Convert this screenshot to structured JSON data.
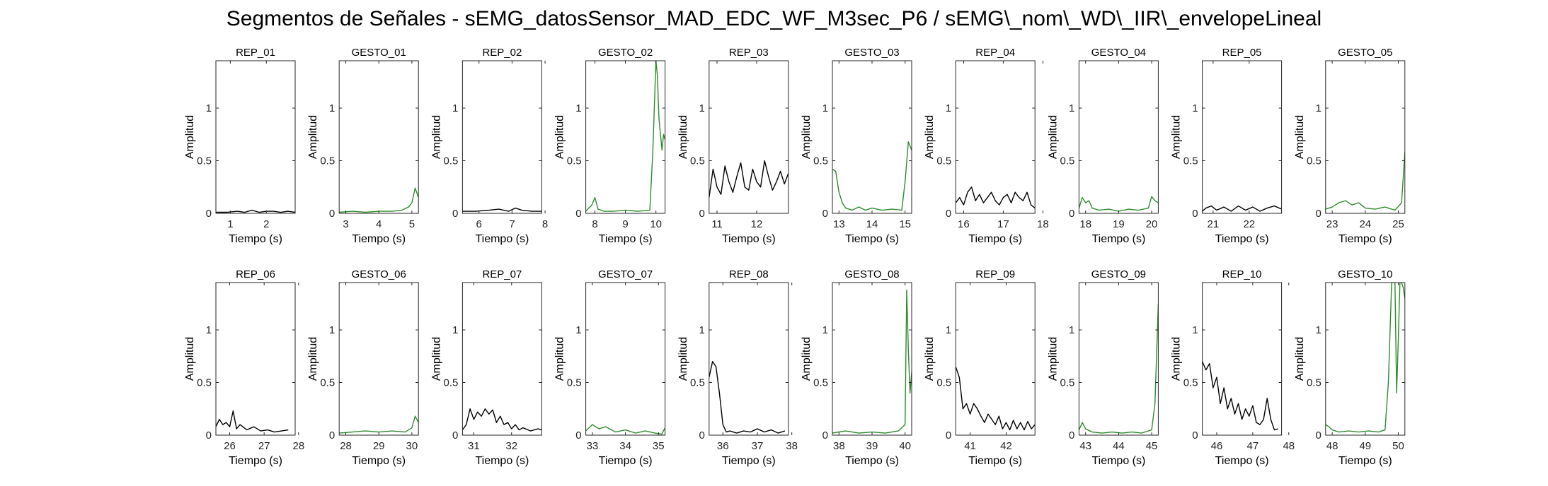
{
  "figure": {
    "title": "Segmentos de Señales - sEMG_datosSensor_MAD_EDC_WF_M3sec_P6 / sEMG\\_nom\\_WD\\_IIR\\_envelopeLineal"
  },
  "colors": {
    "rep": "#000000",
    "gesto": "#2e8b2e",
    "axes": "#262626"
  },
  "chart_data": [
    {
      "type": "line",
      "title": "REP_01",
      "xlabel": "Tiempo (s)",
      "ylabel": "Amplitud",
      "xlim": [
        0.6,
        2.8
      ],
      "ylim": [
        0,
        1.45
      ],
      "xticks": [
        1,
        2
      ],
      "yticks": [
        0,
        0.5,
        1
      ],
      "ytick_labels": [
        "0",
        "0.5",
        "1"
      ],
      "series_color": "#000000",
      "x": [
        0.6,
        0.9,
        1.2,
        1.4,
        1.6,
        1.8,
        2.0,
        2.2,
        2.4,
        2.6,
        2.8
      ],
      "y": [
        0.01,
        0.01,
        0.02,
        0.01,
        0.03,
        0.01,
        0.02,
        0.02,
        0.01,
        0.02,
        0.01
      ]
    },
    {
      "type": "line",
      "title": "GESTO_01",
      "xlabel": "Tiempo (s)",
      "ylabel": "Amplitud",
      "xlim": [
        2.8,
        5.2
      ],
      "ylim": [
        0,
        1.45
      ],
      "xticks": [
        3,
        4,
        5
      ],
      "yticks": [
        0,
        0.5,
        1
      ],
      "ytick_labels": [
        "0",
        "0.5",
        "1"
      ],
      "series_color": "#2e8b2e",
      "x": [
        2.8,
        3.2,
        3.6,
        4.0,
        4.4,
        4.7,
        4.9,
        5.0,
        5.1,
        5.2
      ],
      "y": [
        0.01,
        0.02,
        0.01,
        0.02,
        0.02,
        0.03,
        0.06,
        0.1,
        0.24,
        0.15
      ]
    },
    {
      "type": "line",
      "title": "REP_02",
      "xlabel": "Tiempo (s)",
      "ylabel": "Amplitud",
      "xlim": [
        5.5,
        7.9
      ],
      "ylim": [
        0,
        1.45
      ],
      "xticks": [
        6,
        7,
        8
      ],
      "yticks": [
        0,
        0.5,
        1
      ],
      "ytick_labels": [
        "0",
        "0.5",
        "1"
      ],
      "series_color": "#000000",
      "x": [
        5.5,
        5.9,
        6.3,
        6.6,
        6.9,
        7.1,
        7.3,
        7.6,
        7.9
      ],
      "y": [
        0.02,
        0.02,
        0.03,
        0.04,
        0.02,
        0.05,
        0.03,
        0.02,
        0.02
      ]
    },
    {
      "type": "line",
      "title": "GESTO_02",
      "xlabel": "Tiempo (s)",
      "ylabel": "Amplitud",
      "xlim": [
        7.7,
        10.3
      ],
      "ylim": [
        0,
        1.45
      ],
      "xticks": [
        8,
        9,
        10
      ],
      "yticks": [
        0,
        0.5,
        1
      ],
      "ytick_labels": [
        "0",
        "0.5",
        "1"
      ],
      "series_color": "#2e8b2e",
      "x": [
        7.7,
        7.9,
        8.0,
        8.1,
        8.3,
        8.6,
        9.0,
        9.4,
        9.8,
        9.9,
        10.0,
        10.05,
        10.1,
        10.2,
        10.25,
        10.3
      ],
      "y": [
        0.02,
        0.08,
        0.15,
        0.04,
        0.02,
        0.02,
        0.03,
        0.02,
        0.03,
        0.6,
        1.45,
        1.3,
        0.9,
        0.6,
        0.75,
        0.7
      ]
    },
    {
      "type": "line",
      "title": "REP_03",
      "xlabel": "Tiempo (s)",
      "ylabel": "Amplitud",
      "xlim": [
        10.8,
        12.8
      ],
      "ylim": [
        0,
        1.45
      ],
      "xticks": [
        11,
        12
      ],
      "yticks": [
        0,
        0.5,
        1
      ],
      "ytick_labels": [
        "0",
        "0.5",
        "1"
      ],
      "series_color": "#000000",
      "x": [
        10.8,
        10.9,
        11.0,
        11.1,
        11.2,
        11.3,
        11.4,
        11.5,
        11.6,
        11.7,
        11.8,
        11.9,
        12.0,
        12.1,
        12.2,
        12.3,
        12.4,
        12.5,
        12.6,
        12.7,
        12.8
      ],
      "y": [
        0.15,
        0.42,
        0.25,
        0.18,
        0.45,
        0.3,
        0.2,
        0.35,
        0.48,
        0.25,
        0.22,
        0.42,
        0.3,
        0.25,
        0.5,
        0.35,
        0.22,
        0.3,
        0.4,
        0.28,
        0.38
      ]
    },
    {
      "type": "line",
      "title": "GESTO_03",
      "xlabel": "Tiempo (s)",
      "ylabel": "Amplitud",
      "xlim": [
        12.8,
        15.2
      ],
      "ylim": [
        0,
        1.45
      ],
      "xticks": [
        13,
        14,
        15
      ],
      "yticks": [
        0,
        0.5,
        1
      ],
      "ytick_labels": [
        "0",
        "0.5",
        "1"
      ],
      "series_color": "#2e8b2e",
      "x": [
        12.8,
        12.9,
        13.0,
        13.1,
        13.2,
        13.4,
        13.6,
        13.8,
        14.0,
        14.3,
        14.6,
        14.9,
        15.0,
        15.1,
        15.2
      ],
      "y": [
        0.42,
        0.4,
        0.2,
        0.1,
        0.05,
        0.03,
        0.06,
        0.03,
        0.05,
        0.03,
        0.04,
        0.03,
        0.3,
        0.68,
        0.6
      ]
    },
    {
      "type": "line",
      "title": "REP_04",
      "xlabel": "Tiempo (s)",
      "ylabel": "Amplitud",
      "xlim": [
        15.8,
        17.8
      ],
      "ylim": [
        0,
        1.45
      ],
      "xticks": [
        16,
        17,
        18
      ],
      "yticks": [
        0,
        0.5,
        1
      ],
      "ytick_labels": [
        "0",
        "0.5",
        "1"
      ],
      "series_color": "#000000",
      "x": [
        15.8,
        15.9,
        16.0,
        16.1,
        16.2,
        16.3,
        16.4,
        16.5,
        16.6,
        16.7,
        16.8,
        16.9,
        17.0,
        17.1,
        17.2,
        17.3,
        17.4,
        17.5,
        17.6,
        17.7,
        17.8
      ],
      "y": [
        0.1,
        0.15,
        0.08,
        0.2,
        0.25,
        0.12,
        0.18,
        0.1,
        0.15,
        0.2,
        0.12,
        0.08,
        0.15,
        0.18,
        0.1,
        0.2,
        0.15,
        0.12,
        0.2,
        0.08,
        0.05
      ]
    },
    {
      "type": "line",
      "title": "GESTO_04",
      "xlabel": "Tiempo (s)",
      "ylabel": "Amplitud",
      "xlim": [
        17.8,
        20.2
      ],
      "ylim": [
        0,
        1.45
      ],
      "xticks": [
        18,
        19,
        20
      ],
      "yticks": [
        0,
        0.5,
        1
      ],
      "ytick_labels": [
        "0",
        "0.5",
        "1"
      ],
      "series_color": "#2e8b2e",
      "x": [
        17.8,
        17.9,
        18.0,
        18.1,
        18.2,
        18.4,
        18.7,
        19.0,
        19.3,
        19.6,
        19.9,
        20.0,
        20.1,
        20.2
      ],
      "y": [
        0.05,
        0.15,
        0.1,
        0.12,
        0.05,
        0.03,
        0.04,
        0.02,
        0.04,
        0.03,
        0.05,
        0.16,
        0.12,
        0.1
      ]
    },
    {
      "type": "line",
      "title": "REP_05",
      "xlabel": "Tiempo (s)",
      "ylabel": "Amplitud",
      "xlim": [
        20.7,
        22.9
      ],
      "ylim": [
        0,
        1.45
      ],
      "xticks": [
        21,
        22
      ],
      "yticks": [
        0,
        0.5,
        1
      ],
      "ytick_labels": [
        "0",
        "0.5",
        "1"
      ],
      "series_color": "#000000",
      "x": [
        20.7,
        20.8,
        20.95,
        21.1,
        21.3,
        21.5,
        21.7,
        21.9,
        22.1,
        22.3,
        22.5,
        22.7,
        22.9
      ],
      "y": [
        0.02,
        0.05,
        0.07,
        0.03,
        0.06,
        0.02,
        0.07,
        0.03,
        0.06,
        0.02,
        0.05,
        0.07,
        0.04
      ]
    },
    {
      "type": "line",
      "title": "GESTO_05",
      "xlabel": "Tiempo (s)",
      "ylabel": "Amplitud",
      "xlim": [
        22.8,
        25.2
      ],
      "ylim": [
        0,
        1.45
      ],
      "xticks": [
        23,
        24,
        25
      ],
      "yticks": [
        0,
        0.5,
        1
      ],
      "ytick_labels": [
        "0",
        "0.5",
        "1"
      ],
      "series_color": "#2e8b2e",
      "x": [
        22.8,
        23.0,
        23.2,
        23.4,
        23.6,
        23.8,
        24.0,
        24.3,
        24.6,
        24.9,
        25.1,
        25.2
      ],
      "y": [
        0.04,
        0.06,
        0.1,
        0.12,
        0.08,
        0.1,
        0.05,
        0.04,
        0.06,
        0.03,
        0.1,
        0.58
      ]
    },
    {
      "type": "line",
      "title": "REP_06",
      "xlabel": "Tiempo (s)",
      "ylabel": "Amplitud",
      "xlim": [
        25.6,
        27.9
      ],
      "ylim": [
        0,
        1.45
      ],
      "xticks": [
        26,
        27,
        28
      ],
      "yticks": [
        0,
        0.5,
        1
      ],
      "ytick_labels": [
        "0",
        "0.5",
        "1"
      ],
      "series_color": "#000000",
      "x": [
        25.6,
        25.7,
        25.8,
        25.9,
        26.0,
        26.1,
        26.2,
        26.3,
        26.5,
        26.7,
        26.9,
        27.1,
        27.3,
        27.5,
        27.7
      ],
      "y": [
        0.08,
        0.15,
        0.1,
        0.12,
        0.08,
        0.23,
        0.06,
        0.1,
        0.05,
        0.08,
        0.04,
        0.05,
        0.03,
        0.04,
        0.05
      ]
    },
    {
      "type": "line",
      "title": "GESTO_06",
      "xlabel": "Tiempo (s)",
      "ylabel": "Amplitud",
      "xlim": [
        27.8,
        30.2
      ],
      "ylim": [
        0,
        1.45
      ],
      "xticks": [
        28,
        29,
        30
      ],
      "yticks": [
        0,
        0.5,
        1
      ],
      "ytick_labels": [
        "0",
        "0.5",
        "1"
      ],
      "series_color": "#2e8b2e",
      "x": [
        27.8,
        28.2,
        28.6,
        29.0,
        29.4,
        29.8,
        30.0,
        30.1,
        30.2
      ],
      "y": [
        0.02,
        0.03,
        0.04,
        0.03,
        0.04,
        0.03,
        0.07,
        0.18,
        0.12
      ]
    },
    {
      "type": "line",
      "title": "REP_07",
      "xlabel": "Tiempo (s)",
      "ylabel": "Amplitud",
      "xlim": [
        30.7,
        32.8
      ],
      "ylim": [
        0,
        1.45
      ],
      "xticks": [
        31,
        32
      ],
      "yticks": [
        0,
        0.5,
        1
      ],
      "ytick_labels": [
        "0",
        "0.5",
        "1"
      ],
      "series_color": "#000000",
      "x": [
        30.7,
        30.8,
        30.9,
        31.0,
        31.1,
        31.2,
        31.3,
        31.4,
        31.5,
        31.6,
        31.7,
        31.8,
        31.9,
        32.0,
        32.1,
        32.2,
        32.3,
        32.5,
        32.7,
        32.8
      ],
      "y": [
        0.05,
        0.1,
        0.25,
        0.15,
        0.22,
        0.18,
        0.25,
        0.2,
        0.24,
        0.12,
        0.18,
        0.1,
        0.12,
        0.06,
        0.1,
        0.05,
        0.07,
        0.04,
        0.06,
        0.05
      ]
    },
    {
      "type": "line",
      "title": "GESTO_07",
      "xlabel": "Tiempo (s)",
      "ylabel": "Amplitud",
      "xlim": [
        32.8,
        35.2
      ],
      "ylim": [
        0,
        1.45
      ],
      "xticks": [
        33,
        34,
        35
      ],
      "yticks": [
        0,
        0.5,
        1
      ],
      "ytick_labels": [
        "0",
        "0.5",
        "1"
      ],
      "series_color": "#2e8b2e",
      "x": [
        32.8,
        33.0,
        33.2,
        33.4,
        33.7,
        34.0,
        34.3,
        34.6,
        34.9,
        35.1,
        35.2
      ],
      "y": [
        0.04,
        0.1,
        0.06,
        0.08,
        0.03,
        0.05,
        0.02,
        0.04,
        0.02,
        0.01,
        0.07
      ]
    },
    {
      "type": "line",
      "title": "REP_08",
      "xlabel": "Tiempo (s)",
      "ylabel": "Amplitud",
      "xlim": [
        35.6,
        37.9
      ],
      "ylim": [
        0,
        1.45
      ],
      "xticks": [
        36,
        37,
        38
      ],
      "yticks": [
        0,
        0.5,
        1
      ],
      "ytick_labels": [
        "0",
        "0.5",
        "1"
      ],
      "series_color": "#000000",
      "x": [
        35.6,
        35.7,
        35.8,
        35.9,
        36.0,
        36.1,
        36.2,
        36.4,
        36.6,
        36.8,
        37.0,
        37.2,
        37.4,
        37.6,
        37.8
      ],
      "y": [
        0.55,
        0.7,
        0.65,
        0.4,
        0.1,
        0.03,
        0.04,
        0.02,
        0.04,
        0.03,
        0.06,
        0.03,
        0.05,
        0.02,
        0.04
      ]
    },
    {
      "type": "line",
      "title": "GESTO_08",
      "xlabel": "Tiempo (s)",
      "ylabel": "Amplitud",
      "xlim": [
        37.8,
        40.2
      ],
      "ylim": [
        0,
        1.45
      ],
      "xticks": [
        38,
        39,
        40
      ],
      "yticks": [
        0,
        0.5,
        1
      ],
      "ytick_labels": [
        "0",
        "0.5",
        "1"
      ],
      "series_color": "#2e8b2e",
      "x": [
        37.8,
        38.2,
        38.6,
        39.0,
        39.4,
        39.8,
        40.0,
        40.05,
        40.1,
        40.15,
        40.2
      ],
      "y": [
        0.02,
        0.04,
        0.02,
        0.03,
        0.02,
        0.04,
        0.1,
        1.38,
        0.8,
        0.4,
        0.6
      ]
    },
    {
      "type": "line",
      "title": "REP_09",
      "xlabel": "Tiempo (s)",
      "ylabel": "Amplitud",
      "xlim": [
        40.6,
        42.8
      ],
      "ylim": [
        0,
        1.45
      ],
      "xticks": [
        41,
        42
      ],
      "yticks": [
        0,
        0.5,
        1
      ],
      "ytick_labels": [
        "0",
        "0.5",
        "1"
      ],
      "series_color": "#000000",
      "x": [
        40.6,
        40.7,
        40.8,
        40.9,
        41.0,
        41.1,
        41.2,
        41.3,
        41.4,
        41.5,
        41.6,
        41.7,
        41.8,
        41.9,
        42.0,
        42.1,
        42.2,
        42.3,
        42.4,
        42.5,
        42.6,
        42.7,
        42.8
      ],
      "y": [
        0.65,
        0.55,
        0.25,
        0.3,
        0.2,
        0.3,
        0.25,
        0.18,
        0.12,
        0.2,
        0.15,
        0.1,
        0.18,
        0.06,
        0.12,
        0.05,
        0.14,
        0.06,
        0.12,
        0.05,
        0.13,
        0.06,
        0.1
      ]
    },
    {
      "type": "line",
      "title": "GESTO_09",
      "xlabel": "Tiempo (s)",
      "ylabel": "Amplitud",
      "xlim": [
        42.8,
        45.2
      ],
      "ylim": [
        0,
        1.45
      ],
      "xticks": [
        43,
        44,
        45
      ],
      "yticks": [
        0,
        0.5,
        1
      ],
      "ytick_labels": [
        "0",
        "0.5",
        "1"
      ],
      "series_color": "#2e8b2e",
      "x": [
        42.8,
        42.9,
        43.0,
        43.2,
        43.5,
        43.8,
        44.1,
        44.4,
        44.7,
        45.0,
        45.1,
        45.2
      ],
      "y": [
        0.05,
        0.12,
        0.06,
        0.03,
        0.02,
        0.03,
        0.02,
        0.03,
        0.02,
        0.05,
        0.3,
        1.25
      ]
    },
    {
      "type": "line",
      "title": "REP_10",
      "xlabel": "Tiempo (s)",
      "ylabel": "Amplitud",
      "xlim": [
        45.6,
        47.8
      ],
      "ylim": [
        0,
        1.45
      ],
      "xticks": [
        46,
        47,
        48
      ],
      "yticks": [
        0,
        0.5,
        1
      ],
      "ytick_labels": [
        "0",
        "0.5",
        "1"
      ],
      "series_color": "#000000",
      "x": [
        45.6,
        45.7,
        45.8,
        45.9,
        46.0,
        46.1,
        46.2,
        46.3,
        46.4,
        46.5,
        46.6,
        46.7,
        46.8,
        46.9,
        47.0,
        47.1,
        47.2,
        47.3,
        47.4,
        47.5,
        47.6,
        47.7
      ],
      "y": [
        0.7,
        0.62,
        0.68,
        0.45,
        0.55,
        0.3,
        0.45,
        0.25,
        0.35,
        0.2,
        0.3,
        0.15,
        0.25,
        0.18,
        0.28,
        0.12,
        0.1,
        0.15,
        0.35,
        0.15,
        0.05,
        0.06
      ]
    },
    {
      "type": "line",
      "title": "GESTO_10",
      "xlabel": "Tiempo (s)",
      "ylabel": "Amplitud",
      "xlim": [
        47.8,
        50.2
      ],
      "ylim": [
        0,
        1.45
      ],
      "xticks": [
        48,
        49,
        50
      ],
      "yticks": [
        0,
        0.5,
        1
      ],
      "ytick_labels": [
        "0",
        "0.5",
        "1"
      ],
      "series_color": "#2e8b2e",
      "x": [
        47.8,
        47.9,
        48.0,
        48.2,
        48.5,
        48.8,
        49.1,
        49.4,
        49.6,
        49.7,
        49.8,
        49.9,
        49.95,
        50.0,
        50.05,
        50.1,
        50.15,
        50.2
      ],
      "y": [
        0.1,
        0.08,
        0.05,
        0.03,
        0.04,
        0.03,
        0.04,
        0.03,
        0.05,
        0.5,
        1.45,
        1.45,
        0.4,
        0.9,
        1.45,
        1.45,
        1.4,
        1.3
      ]
    }
  ]
}
